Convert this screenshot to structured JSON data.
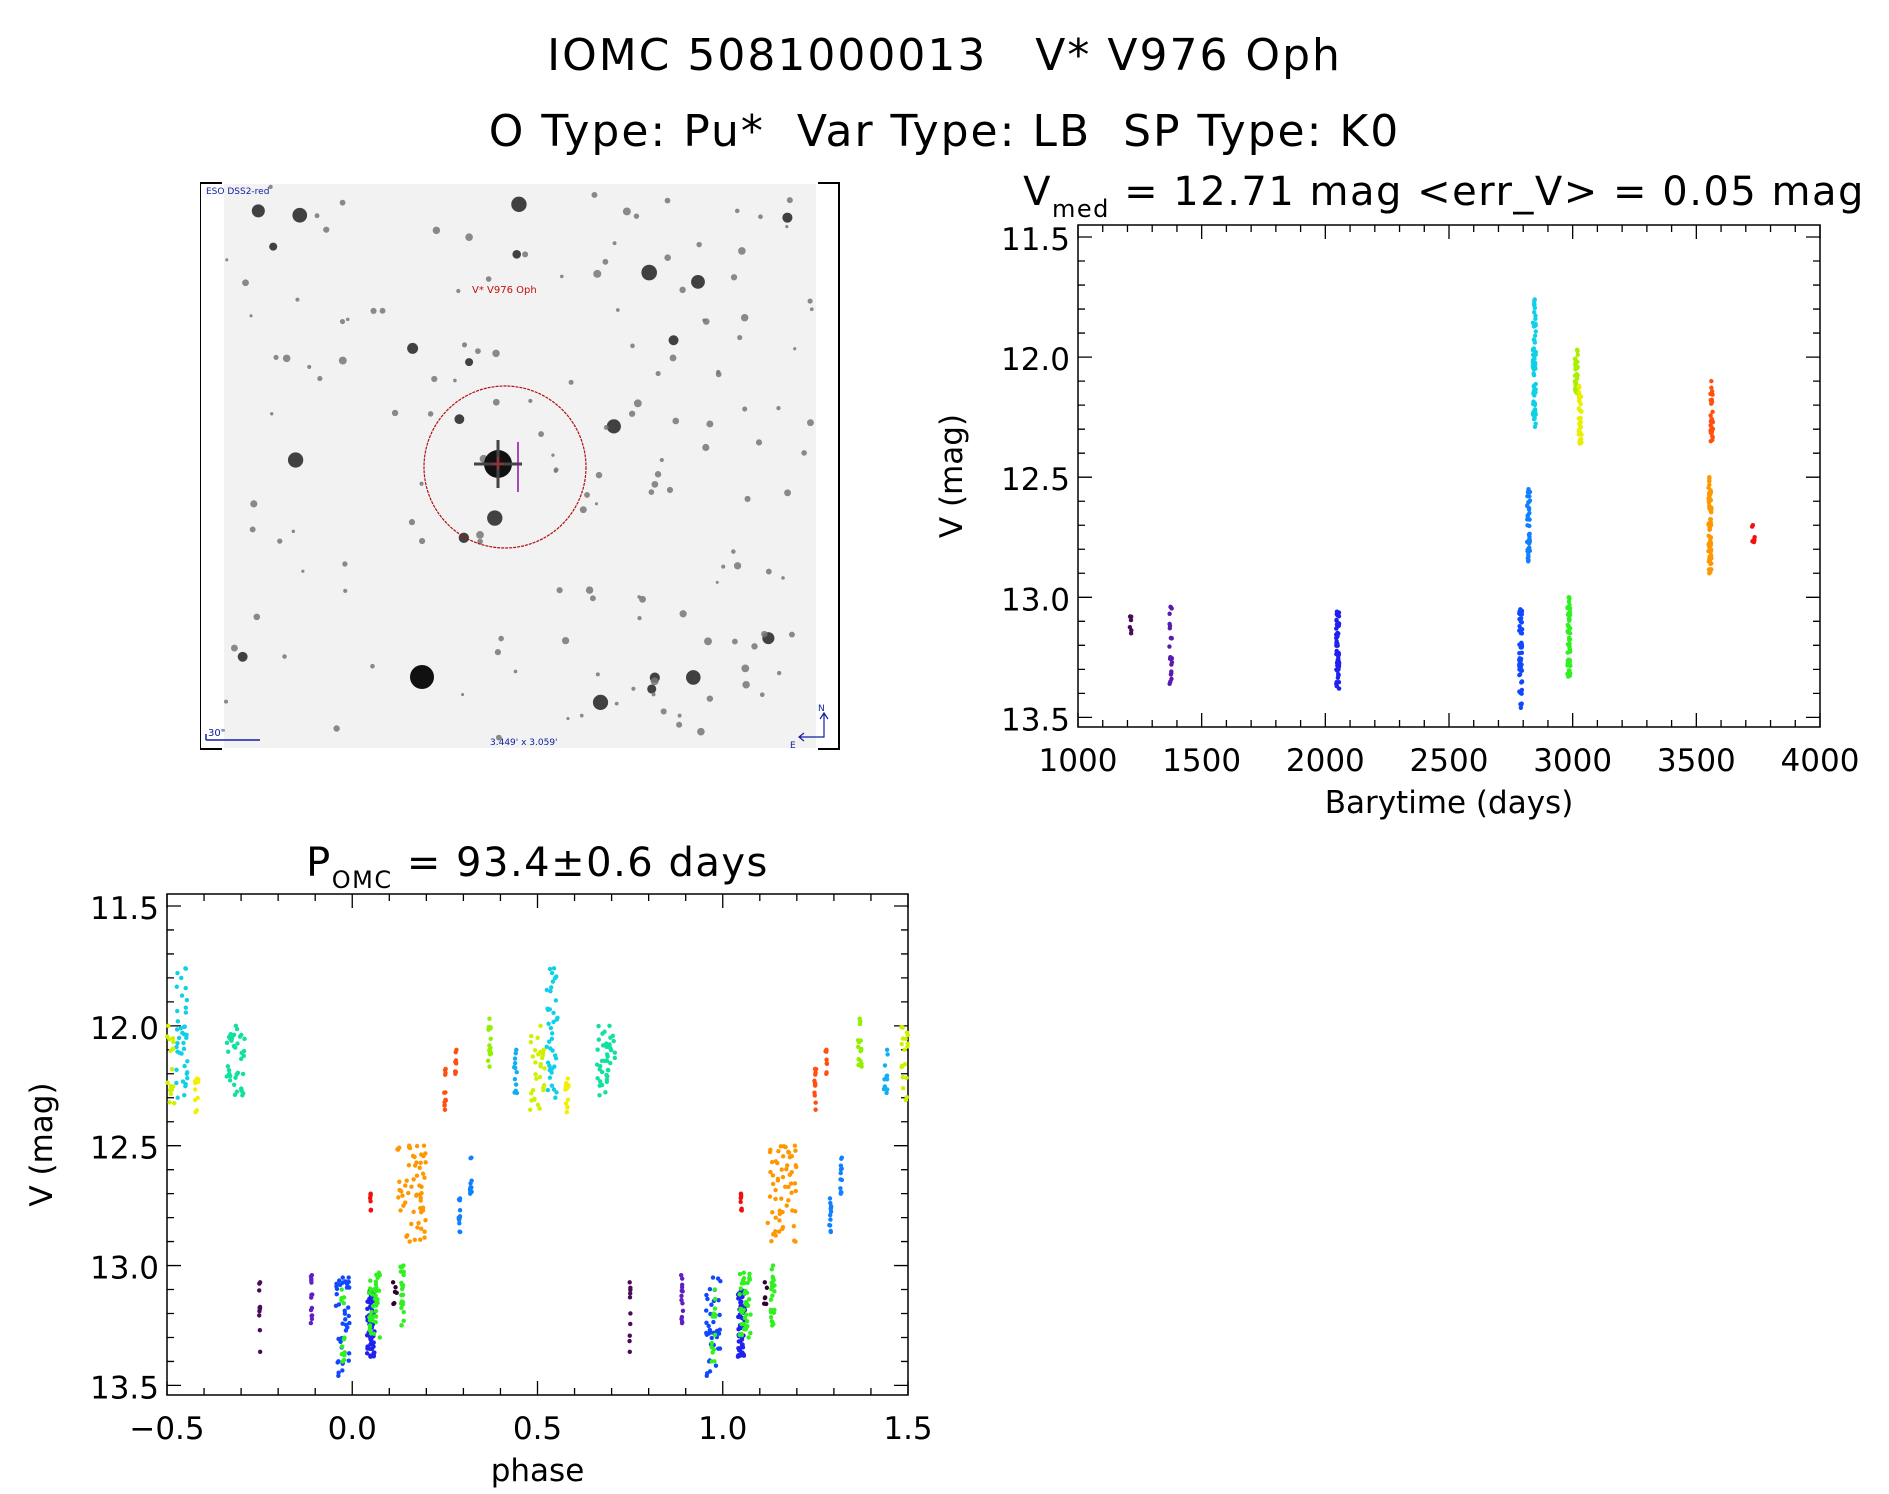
{
  "header": {
    "line1": "IOMC 5081000013   V* V976 Oph",
    "line2": "O Type: Pu*  Var Type: LB  SP Type: K0"
  },
  "sky_image": {
    "survey": "ESO DSS2-red",
    "target_label": "V* V976 Oph",
    "scale_label": "30\"",
    "fov_label": "3.449' x 3.059'",
    "north": "N",
    "east": "E",
    "marker_color": "#b01010"
  },
  "chart_data": [
    {
      "type": "scatter",
      "title_main": "V",
      "title_sub": "med",
      "title_rest": " = 12.71 mag <err_V> = 0.05 mag",
      "xlabel": "Barytime (days)",
      "ylabel": "V (mag)",
      "xlim": [
        1000,
        4000
      ],
      "ylim": [
        13.54,
        11.45
      ],
      "y_inverted": true,
      "xticks": [
        "1000",
        "1500",
        "2000",
        "2500",
        "3000",
        "3500",
        "4000"
      ],
      "yticks": [
        "11.5",
        "12.0",
        "12.5",
        "13.0",
        "13.5"
      ],
      "clusters": [
        {
          "x": 1215,
          "vmin": 13.08,
          "vmax": 13.15,
          "n": 6,
          "color": "#4b0a5a"
        },
        {
          "x": 1375,
          "vmin": 13.04,
          "vmax": 13.36,
          "n": 22,
          "color": "#5a1ab0"
        },
        {
          "x": 2050,
          "vmin": 13.06,
          "vmax": 13.38,
          "n": 60,
          "color": "#2020f0"
        },
        {
          "x": 2790,
          "vmin": 13.05,
          "vmax": 13.46,
          "n": 60,
          "color": "#1048ff"
        },
        {
          "x": 2822,
          "vmin": 12.55,
          "vmax": 12.85,
          "n": 40,
          "color": "#1080ff"
        },
        {
          "x": 2845,
          "vmin": 11.76,
          "vmax": 12.29,
          "n": 70,
          "color": "#10d0e8"
        },
        {
          "x": 2985,
          "vmin": 13.0,
          "vmax": 13.33,
          "n": 60,
          "color": "#30f020"
        },
        {
          "x": 3015,
          "vmin": 11.97,
          "vmax": 12.15,
          "n": 40,
          "color": "#a8f000"
        },
        {
          "x": 3030,
          "vmin": 12.12,
          "vmax": 12.36,
          "n": 40,
          "color": "#e8f000"
        },
        {
          "x": 3555,
          "vmin": 12.5,
          "vmax": 12.9,
          "n": 70,
          "color": "#ff9800"
        },
        {
          "x": 3562,
          "vmin": 12.1,
          "vmax": 12.35,
          "n": 30,
          "color": "#ff5010"
        },
        {
          "x": 3730,
          "vmin": 12.7,
          "vmax": 12.77,
          "n": 8,
          "color": "#f01010"
        }
      ]
    },
    {
      "type": "scatter",
      "title_main": "P",
      "title_sub": "OMC",
      "title_rest": " = 93.4±0.6 days",
      "xlabel": "phase",
      "ylabel": "V (mag)",
      "xlim": [
        -0.5,
        1.5
      ],
      "ylim": [
        13.54,
        11.45
      ],
      "y_inverted": true,
      "xticks": [
        "-0.5",
        "0.0",
        "0.5",
        "1.0",
        "1.5"
      ],
      "yticks": [
        "11.5",
        "12.0",
        "12.5",
        "13.0",
        "13.5"
      ],
      "clusters": [
        {
          "phase": 0.54,
          "width": 0.03,
          "vmin": 11.76,
          "vmax": 12.3,
          "n": 40,
          "color": "#10d0e8"
        },
        {
          "phase": 0.5,
          "width": 0.04,
          "vmin": 12.0,
          "vmax": 12.35,
          "n": 30,
          "color": "#d0f000"
        },
        {
          "phase": 0.58,
          "width": 0.01,
          "vmin": 12.22,
          "vmax": 12.36,
          "n": 12,
          "color": "#f0f000"
        },
        {
          "phase": 0.685,
          "width": 0.05,
          "vmin": 12.0,
          "vmax": 12.29,
          "n": 40,
          "color": "#10e0a0"
        },
        {
          "phase": 0.37,
          "width": 0.01,
          "vmin": 11.97,
          "vmax": 12.17,
          "n": 16,
          "color": "#90f000"
        },
        {
          "phase": 0.44,
          "width": 0.01,
          "vmin": 12.1,
          "vmax": 12.28,
          "n": 12,
          "color": "#10b0f0"
        },
        {
          "phase": 0.25,
          "width": 0.005,
          "vmin": 12.18,
          "vmax": 12.35,
          "n": 12,
          "color": "#ff5010"
        },
        {
          "phase": 0.28,
          "width": 0.005,
          "vmin": 12.1,
          "vmax": 12.2,
          "n": 8,
          "color": "#ff5010"
        },
        {
          "phase": 0.05,
          "width": 0.004,
          "vmin": 12.7,
          "vmax": 12.77,
          "n": 8,
          "color": "#f01010"
        },
        {
          "phase": 0.16,
          "width": 0.08,
          "vmin": 12.5,
          "vmax": 12.9,
          "n": 60,
          "color": "#ff9800"
        },
        {
          "phase": 0.29,
          "width": 0.005,
          "vmin": 12.72,
          "vmax": 12.86,
          "n": 12,
          "color": "#1080ff"
        },
        {
          "phase": 0.32,
          "width": 0.005,
          "vmin": 12.55,
          "vmax": 12.7,
          "n": 12,
          "color": "#1080ff"
        },
        {
          "phase": 0.75,
          "width": 0.003,
          "vmin": 13.07,
          "vmax": 13.36,
          "n": 10,
          "color": "#4b0a5a"
        },
        {
          "phase": 0.89,
          "width": 0.006,
          "vmin": 13.04,
          "vmax": 13.24,
          "n": 14,
          "color": "#6020c0"
        },
        {
          "phase": 0.975,
          "width": 0.04,
          "vmin": 13.05,
          "vmax": 13.46,
          "n": 40,
          "color": "#1048ff"
        },
        {
          "phase": 0.975,
          "width": 0.01,
          "vmin": 13.1,
          "vmax": 13.4,
          "n": 14,
          "color": "#30f020"
        },
        {
          "phase": 0.05,
          "width": 0.02,
          "vmin": 13.1,
          "vmax": 13.38,
          "n": 60,
          "color": "#2020f0"
        },
        {
          "phase": 0.06,
          "width": 0.03,
          "vmin": 13.03,
          "vmax": 13.3,
          "n": 40,
          "color": "#30f020"
        },
        {
          "phase": 0.135,
          "width": 0.01,
          "vmin": 13.0,
          "vmax": 13.25,
          "n": 24,
          "color": "#30f020"
        },
        {
          "phase": 0.115,
          "width": 0.01,
          "vmin": 13.07,
          "vmax": 13.16,
          "n": 6,
          "color": "#300030"
        }
      ]
    }
  ]
}
